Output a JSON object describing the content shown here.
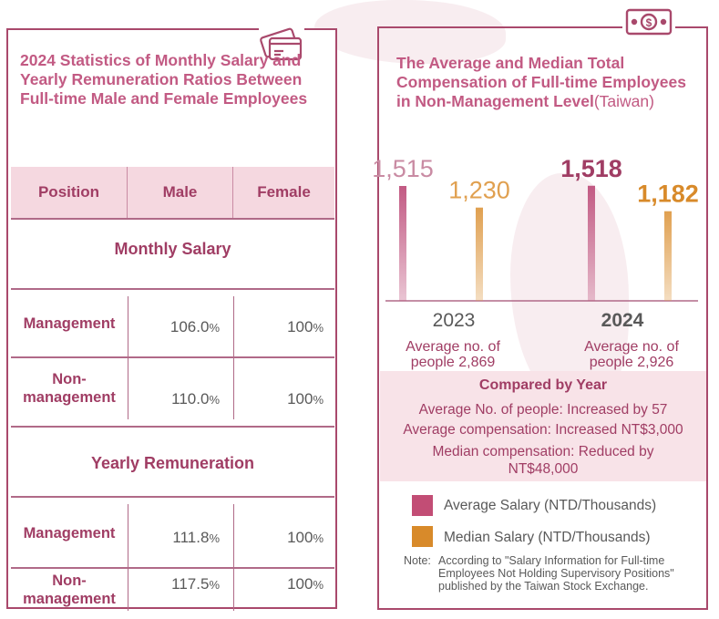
{
  "colors": {
    "accent": "#a9496c",
    "title_pink": "#c25a83",
    "average_bar": "#c25a83",
    "median_bar": "#e0a050",
    "avg_label_2023": "#c98ba3",
    "median_label": "#e0a050",
    "legend_avg": "#c24d75",
    "legend_median": "#d88a2a"
  },
  "left": {
    "icon": "credit-card-icon",
    "title": "2024 Statistics of Monthly Salary and Yearly Remuneration Ratios Between Full-time Male and Female Employees",
    "headers": [
      "Position",
      "Male",
      "Female"
    ],
    "sections": [
      {
        "title": "Monthly Salary",
        "rows": [
          {
            "position": "Management",
            "male": "106.0",
            "female": "100"
          },
          {
            "position": "Non-management",
            "male": "110.0",
            "female": "100"
          }
        ]
      },
      {
        "title": "Yearly Remuneration",
        "rows": [
          {
            "position": "Management",
            "male": "111.8",
            "female": "100"
          },
          {
            "position": "Non-management",
            "male": "117.5",
            "female": "100"
          }
        ]
      }
    ],
    "pct": "%"
  },
  "right": {
    "icon": "money-bill-icon",
    "title": "The Average and Median Total Compensation of Full-time Employees in Non-Management Level",
    "title_suffix": "(Taiwan)",
    "years": [
      {
        "year": "2023",
        "avg_people_1": "Average no. of",
        "avg_people_2": "people 2,869"
      },
      {
        "year": "2024",
        "avg_people_1": "Average no. of",
        "avg_people_2": "people 2,926"
      }
    ],
    "compare": {
      "title": "Compared by Year",
      "line1": "Average No. of people: Increased by 57",
      "line2": "Average compensation: Increased NT$3,000",
      "line3": "Median compensation: Reduced by",
      "line4": "NT$48,000"
    },
    "legend": [
      {
        "label": "Average Salary (NTD/Thousands)",
        "icon": "square"
      },
      {
        "label": "Median Salary (NTD/Thousands)",
        "icon": "square"
      }
    ],
    "note_label": "Note:",
    "note_text": "According to \"Salary Information for Full-time Employees Not Holding Supervisory Positions\" published by the Taiwan Stock Exchange."
  },
  "chart_data": {
    "type": "bar",
    "categories": [
      "2023",
      "2024"
    ],
    "series": [
      {
        "name": "Average Salary (NTD/Thousands)",
        "values": [
          1515,
          1518
        ],
        "labels": [
          "1,515",
          "1,518"
        ]
      },
      {
        "name": "Median Salary (NTD/Thousands)",
        "values": [
          1230,
          1182
        ],
        "labels": [
          "1,230",
          "1,182"
        ]
      }
    ],
    "title": "The Average and Median Total Compensation of Full-time Employees in Non-Management Level(Taiwan)",
    "xlabel": "",
    "ylabel": "",
    "grid": false,
    "legend": "bottom"
  }
}
